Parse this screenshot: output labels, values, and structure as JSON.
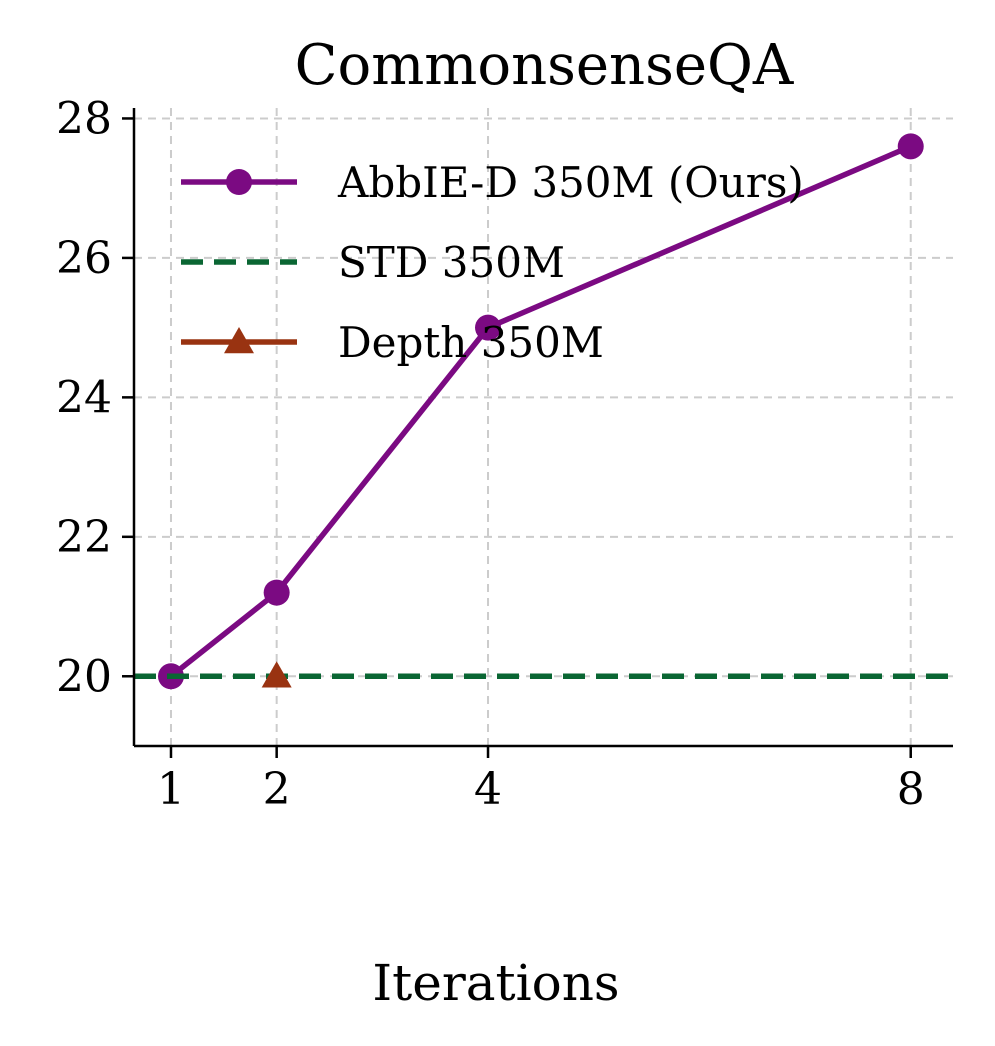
{
  "chart_data": {
    "type": "line",
    "title": "CommonsenseQA",
    "xlabel": "Iterations",
    "ylabel": "",
    "x_ticks": [
      1,
      2,
      4,
      8
    ],
    "y_ticks": [
      20,
      22,
      24,
      26,
      28
    ],
    "xlim": [
      0.65,
      8.4
    ],
    "ylim": [
      19.0,
      28.15
    ],
    "grid": true,
    "legend_position": "upper-left",
    "series": [
      {
        "name": "AbbIE-D 350M (Ours)",
        "style": "solid",
        "marker": "circle",
        "color": "#7b0a82",
        "x": [
          1,
          2,
          4,
          8
        ],
        "y": [
          20.0,
          21.2,
          25.0,
          27.6
        ]
      },
      {
        "name": "STD 350M",
        "style": "dashed",
        "marker": "none",
        "color": "#0a6633",
        "hline": 20.0
      },
      {
        "name": "Depth 350M",
        "style": "solid",
        "marker": "triangle",
        "color": "#993311",
        "x": [
          2
        ],
        "y": [
          20.0
        ]
      }
    ]
  }
}
